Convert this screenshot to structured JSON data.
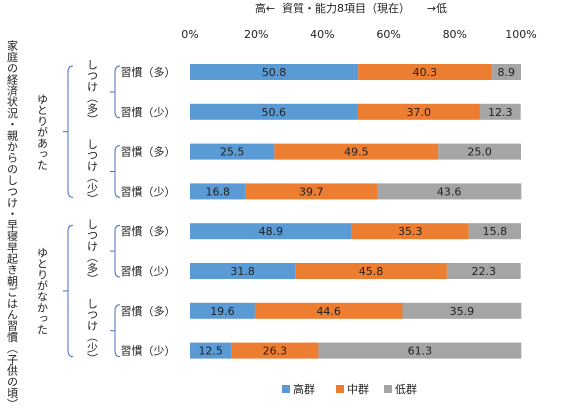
{
  "chart_data": {
    "type": "bar",
    "stacked": true,
    "orientation": "horizontal",
    "header": {
      "left": "高←",
      "center": "資質・能力8項目（現在）",
      "right": "→低"
    },
    "x_ticks": [
      "0%",
      "20%",
      "40%",
      "60%",
      "80%",
      "100%"
    ],
    "xlim": [
      0,
      100
    ],
    "y_title": "家庭の経済状況・親からのしつけ・早寝早起き朝ごはん習慣（子供の頃）",
    "groups": [
      {
        "label": "ゆとりがあった",
        "subgroups": [
          {
            "label": "しつけ（多）",
            "rows": [
              {
                "label": "習慣（多）",
                "values": [
                  50.8,
                  40.3,
                  8.9
                ]
              },
              {
                "label": "習慣（少）",
                "values": [
                  50.6,
                  37.0,
                  12.3
                ]
              }
            ]
          },
          {
            "label": "しつけ（少）",
            "rows": [
              {
                "label": "習慣（多）",
                "values": [
                  25.5,
                  49.5,
                  25.0
                ]
              },
              {
                "label": "習慣（少）",
                "values": [
                  16.8,
                  39.7,
                  43.6
                ]
              }
            ]
          }
        ]
      },
      {
        "label": "ゆとりがなかった",
        "subgroups": [
          {
            "label": "しつけ（多）",
            "rows": [
              {
                "label": "習慣（多）",
                "values": [
                  48.9,
                  35.3,
                  15.8
                ]
              },
              {
                "label": "習慣（少）",
                "values": [
                  31.8,
                  45.8,
                  22.3
                ]
              }
            ]
          },
          {
            "label": "しつけ（少）",
            "rows": [
              {
                "label": "習慣（多）",
                "values": [
                  19.6,
                  44.6,
                  35.9
                ]
              },
              {
                "label": "習慣（少）",
                "values": [
                  12.5,
                  26.3,
                  61.3
                ]
              }
            ]
          }
        ]
      }
    ],
    "series": [
      {
        "name": "高群",
        "color": "#5b9bd5"
      },
      {
        "name": "中群",
        "color": "#ed7d31"
      },
      {
        "name": "低群",
        "color": "#a5a5a5"
      }
    ],
    "legend_position": "bottom",
    "grid": false
  }
}
